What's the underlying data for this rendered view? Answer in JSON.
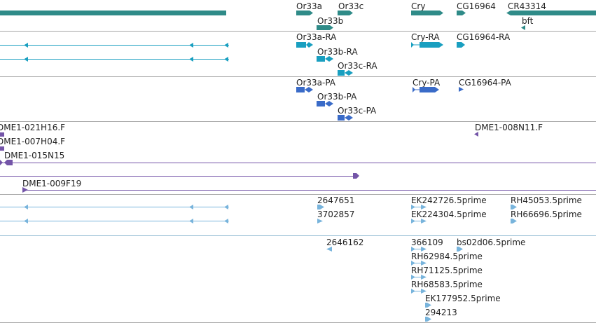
{
  "colors": {
    "gene": "#2f8b88",
    "transcript": "#199fc0",
    "protein": "#3a6bc8",
    "clone": "#7455a8",
    "est": "#78b4dc",
    "separator": "#a7a7a7",
    "separator_est": "#8fb9d2"
  },
  "tracks": {
    "genes": {
      "labels": [
        "Or33a",
        "Or33c",
        "Or33b",
        "Cry",
        "CG16964",
        "CR43314",
        "bft"
      ]
    },
    "transcripts": {
      "labels": [
        "Or33a-RA",
        "Or33b-RA",
        "Or33c-RA",
        "Cry-RA",
        "CG16964-RA"
      ]
    },
    "proteins": {
      "labels": [
        "Or33a-PA",
        "Or33b-PA",
        "Or33c-PA",
        "Cry-PA",
        "CG16964-PA"
      ]
    },
    "clones": {
      "labels": [
        "DME1-021H16.F",
        "DME1-007H04.F",
        "DME1-015N15",
        "DME1-008N11.F",
        "DME1-009F19"
      ]
    },
    "est_a": {
      "labels": [
        "2647651",
        "3702857",
        "EK242726.5prime",
        "EK224304.5prime",
        "RH45053.5prime",
        "RH66696.5prime"
      ]
    },
    "est_b": {
      "labels": [
        "2646162",
        "366109",
        "bs02d06.5prime",
        "RH62984.5prime",
        "RH71125.5prime",
        "RH68583.5prime",
        "EK177952.5prime",
        "294213"
      ]
    }
  }
}
